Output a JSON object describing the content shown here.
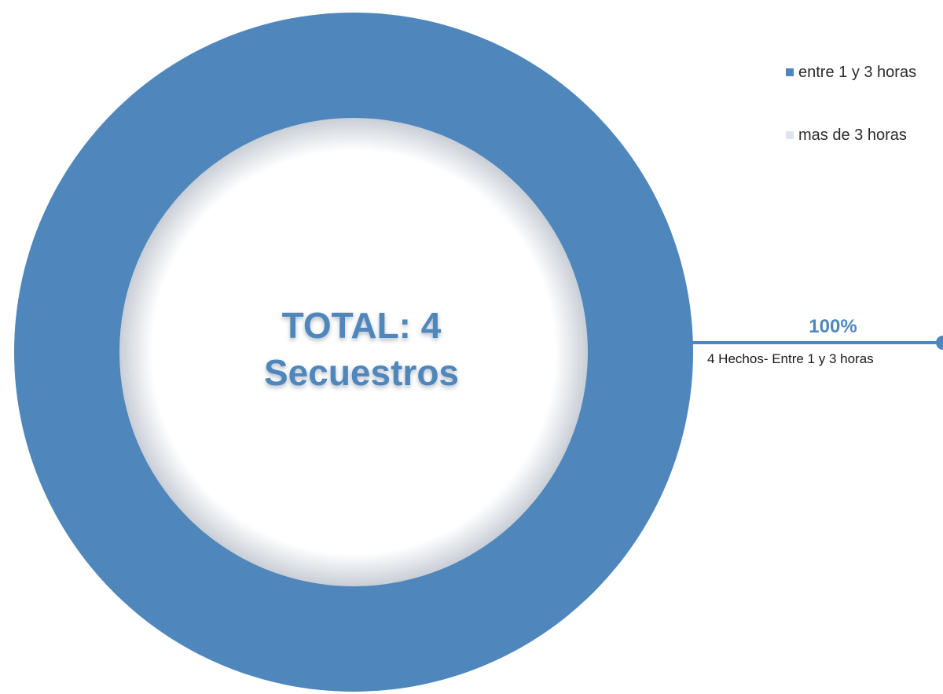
{
  "chart_data": {
    "type": "pie",
    "variant": "donut",
    "center_label": {
      "line1": "TOTAL: 4",
      "line2": "Secuestros"
    },
    "series": [
      {
        "name": "entre 1 y 3 horas",
        "value": 4,
        "percent": "100%",
        "color": "#4f87bd"
      },
      {
        "name": "mas de 3 horas",
        "value": 0,
        "percent": "0%",
        "color": "#dfe5ee"
      }
    ],
    "data_label": {
      "value": "100%",
      "description": "4 Hechos- Entre 1 y 3 horas"
    },
    "legend_position": "top-right"
  }
}
